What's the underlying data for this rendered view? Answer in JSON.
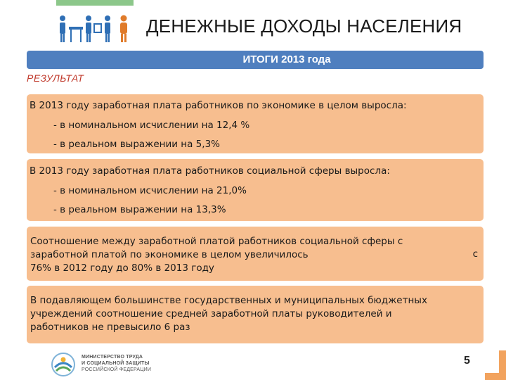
{
  "header": {
    "title": "ДЕНЕЖНЫЕ ДОХОДЫ НАСЕЛЕНИЯ",
    "icons": [
      "people-at-work-icon"
    ]
  },
  "band": {
    "label": "ИТОГИ 2013 года"
  },
  "section": {
    "label": "РЕЗУЛЬТАТ"
  },
  "boxes": [
    {
      "heading": "В 2013 году заработная плата работников по экономике в целом выросла:",
      "items": [
        "- в номинальном исчислении на 12,4 %",
        "- в реальном выражении на 5,3%"
      ]
    },
    {
      "heading": "В 2013 году заработная плата работников социальной сферы выросла:",
      "items": [
        "- в номинальном исчислении на 21,0%",
        "- в реальном выражении на 13,3%"
      ]
    },
    {
      "lines": [
        "Соотношение между заработной платой работников социальной сферы с",
        "заработной платой по экономике в целом увеличилось",
        "76% в 2012 году до 80% в 2013 году"
      ],
      "tail": "с"
    },
    {
      "lines": [
        "В подавляющем большинстве государственных и муниципальных бюджетных",
        "учреждений соотношение средней заработной платы руководителей и",
        "работников не превысило 6 раз"
      ]
    }
  ],
  "footer": {
    "ministry_line1": "МИНИСТЕРСТВО ТРУДА",
    "ministry_line2": "И СОЦИАЛЬНОЙ ЗАЩИТЫ",
    "ministry_line3": "РОССИЙСКОЙ ФЕДЕРАЦИИ",
    "page_number": "5"
  },
  "colors": {
    "accent_green": "#8cc78a",
    "band_blue": "#4f7fbf",
    "box_orange": "#f7be8f",
    "label_red": "#c0392b"
  }
}
